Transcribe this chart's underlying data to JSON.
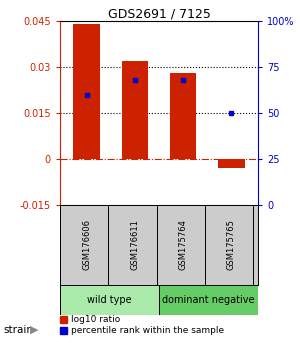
{
  "title": "GDS2691 / 7125",
  "samples": [
    "GSM176606",
    "GSM176611",
    "GSM175764",
    "GSM175765"
  ],
  "log10_ratio": [
    0.044,
    0.032,
    0.028,
    -0.003
  ],
  "percentile_pct": [
    60,
    68,
    68,
    50
  ],
  "ylim_left": [
    -0.015,
    0.045
  ],
  "ylim_right": [
    0,
    100
  ],
  "yticks_left": [
    -0.015,
    0,
    0.015,
    0.03,
    0.045
  ],
  "yticks_right": [
    0,
    25,
    50,
    75,
    100
  ],
  "ytick_labels_left": [
    "-0.015",
    "0",
    "0.015",
    "0.03",
    "0.045"
  ],
  "ytick_labels_right": [
    "0",
    "25",
    "50",
    "75",
    "100%"
  ],
  "hlines_dotted": [
    0.015,
    0.03
  ],
  "hline_dashdot": 0,
  "groups": [
    {
      "name": "wild type",
      "samples": [
        0,
        1
      ],
      "color": "#aaeaaa"
    },
    {
      "name": "dominant negative",
      "samples": [
        2,
        3
      ],
      "color": "#66cc66"
    }
  ],
  "bar_color": "#cc2200",
  "dot_color": "#0000cc",
  "bar_width": 0.55,
  "strain_label": "strain",
  "legend_red": "log10 ratio",
  "legend_blue": "percentile rank within the sample",
  "background_color": "#ffffff"
}
